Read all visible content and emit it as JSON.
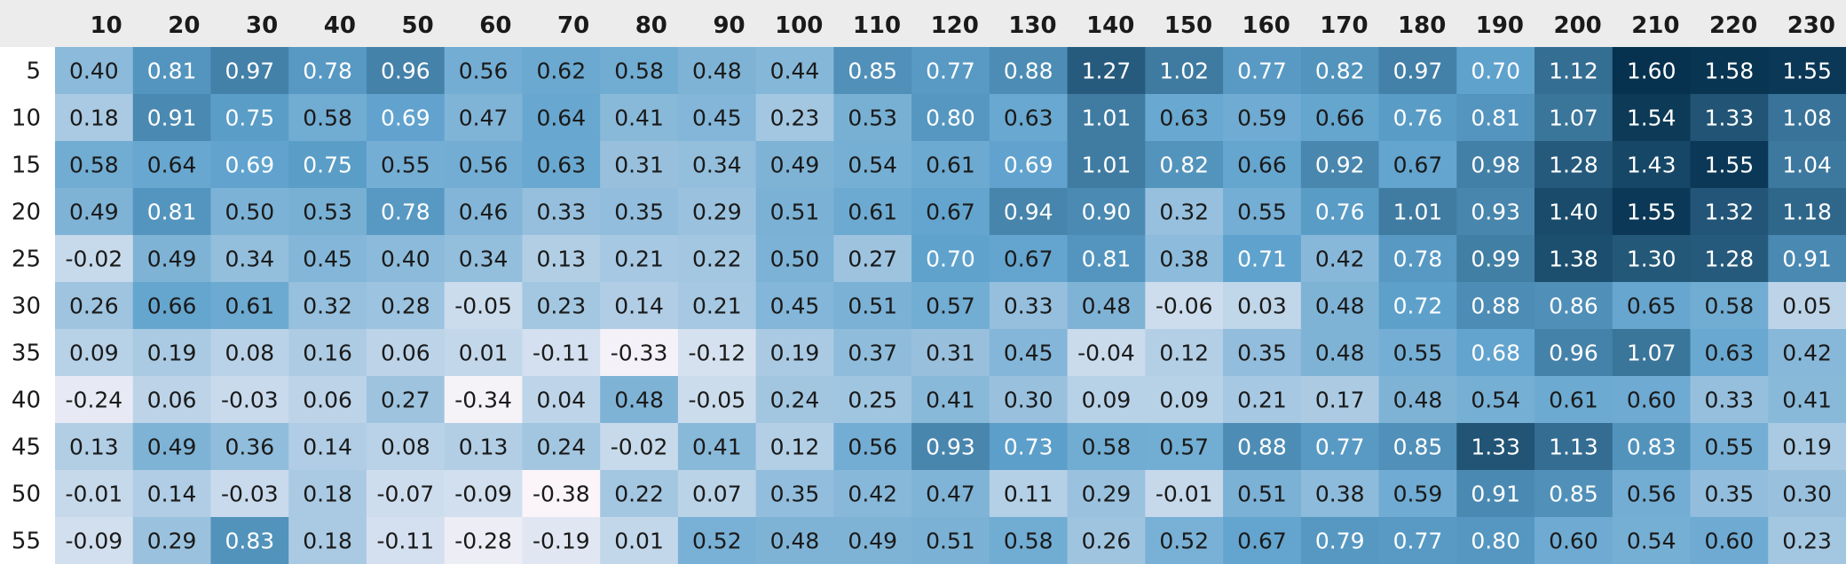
{
  "chart_data": {
    "type": "heatmap",
    "columns": [
      "10",
      "20",
      "30",
      "40",
      "50",
      "60",
      "70",
      "80",
      "90",
      "100",
      "110",
      "120",
      "130",
      "140",
      "150",
      "160",
      "170",
      "180",
      "190",
      "200",
      "210",
      "220",
      "230"
    ],
    "rows": [
      "5",
      "10",
      "15",
      "20",
      "25",
      "30",
      "35",
      "40",
      "45",
      "50",
      "55"
    ],
    "values": [
      [
        0.4,
        0.81,
        0.97,
        0.78,
        0.96,
        0.56,
        0.62,
        0.58,
        0.48,
        0.44,
        0.85,
        0.77,
        0.88,
        1.27,
        1.02,
        0.77,
        0.82,
        0.97,
        0.7,
        1.12,
        1.6,
        1.58,
        1.55
      ],
      [
        0.18,
        0.91,
        0.75,
        0.58,
        0.69,
        0.47,
        0.64,
        0.41,
        0.45,
        0.23,
        0.53,
        0.8,
        0.63,
        1.01,
        0.63,
        0.59,
        0.66,
        0.76,
        0.81,
        1.07,
        1.54,
        1.33,
        1.08
      ],
      [
        0.58,
        0.64,
        0.69,
        0.75,
        0.55,
        0.56,
        0.63,
        0.31,
        0.34,
        0.49,
        0.54,
        0.61,
        0.69,
        1.01,
        0.82,
        0.66,
        0.92,
        0.67,
        0.98,
        1.28,
        1.43,
        1.55,
        1.04
      ],
      [
        0.49,
        0.81,
        0.5,
        0.53,
        0.78,
        0.46,
        0.33,
        0.35,
        0.29,
        0.51,
        0.61,
        0.67,
        0.94,
        0.9,
        0.32,
        0.55,
        0.76,
        1.01,
        0.93,
        1.4,
        1.55,
        1.32,
        1.18
      ],
      [
        -0.02,
        0.49,
        0.34,
        0.45,
        0.4,
        0.34,
        0.13,
        0.21,
        0.22,
        0.5,
        0.27,
        0.7,
        0.67,
        0.81,
        0.38,
        0.71,
        0.42,
        0.78,
        0.99,
        1.38,
        1.3,
        1.28,
        0.91
      ],
      [
        0.26,
        0.66,
        0.61,
        0.32,
        0.28,
        -0.05,
        0.23,
        0.14,
        0.21,
        0.45,
        0.51,
        0.57,
        0.33,
        0.48,
        -0.06,
        0.03,
        0.48,
        0.72,
        0.88,
        0.86,
        0.65,
        0.58,
        0.05
      ],
      [
        0.09,
        0.19,
        0.08,
        0.16,
        0.06,
        0.01,
        -0.11,
        -0.33,
        -0.12,
        0.19,
        0.37,
        0.31,
        0.45,
        -0.04,
        0.12,
        0.35,
        0.48,
        0.55,
        0.68,
        0.96,
        1.07,
        0.63,
        0.42
      ],
      [
        -0.24,
        0.06,
        -0.03,
        0.06,
        0.27,
        -0.34,
        0.04,
        0.48,
        -0.05,
        0.24,
        0.25,
        0.41,
        0.3,
        0.09,
        0.09,
        0.21,
        0.17,
        0.48,
        0.54,
        0.61,
        0.6,
        0.33,
        0.41
      ],
      [
        0.13,
        0.49,
        0.36,
        0.14,
        0.08,
        0.13,
        0.24,
        -0.02,
        0.41,
        0.12,
        0.56,
        0.93,
        0.73,
        0.58,
        0.57,
        0.88,
        0.77,
        0.85,
        1.33,
        1.13,
        0.83,
        0.55,
        0.19
      ],
      [
        -0.01,
        0.14,
        -0.03,
        0.18,
        -0.07,
        -0.09,
        -0.38,
        0.22,
        0.07,
        0.35,
        0.42,
        0.47,
        0.11,
        0.29,
        -0.01,
        0.51,
        0.38,
        0.59,
        0.91,
        0.85,
        0.56,
        0.35,
        0.3
      ],
      [
        -0.09,
        0.29,
        0.83,
        0.18,
        -0.11,
        -0.28,
        -0.19,
        0.01,
        0.52,
        0.48,
        0.49,
        0.51,
        0.58,
        0.26,
        0.52,
        0.67,
        0.79,
        0.77,
        0.8,
        0.6,
        0.54,
        0.6,
        0.23
      ]
    ],
    "color_scale": {
      "min": -0.38,
      "max": 1.6,
      "low_color": "#fbf5fa",
      "mid_color": "#5ea2cd",
      "high_color": "#06324f"
    },
    "header_background": "#ececec",
    "title": "",
    "xlabel": "",
    "ylabel": ""
  }
}
